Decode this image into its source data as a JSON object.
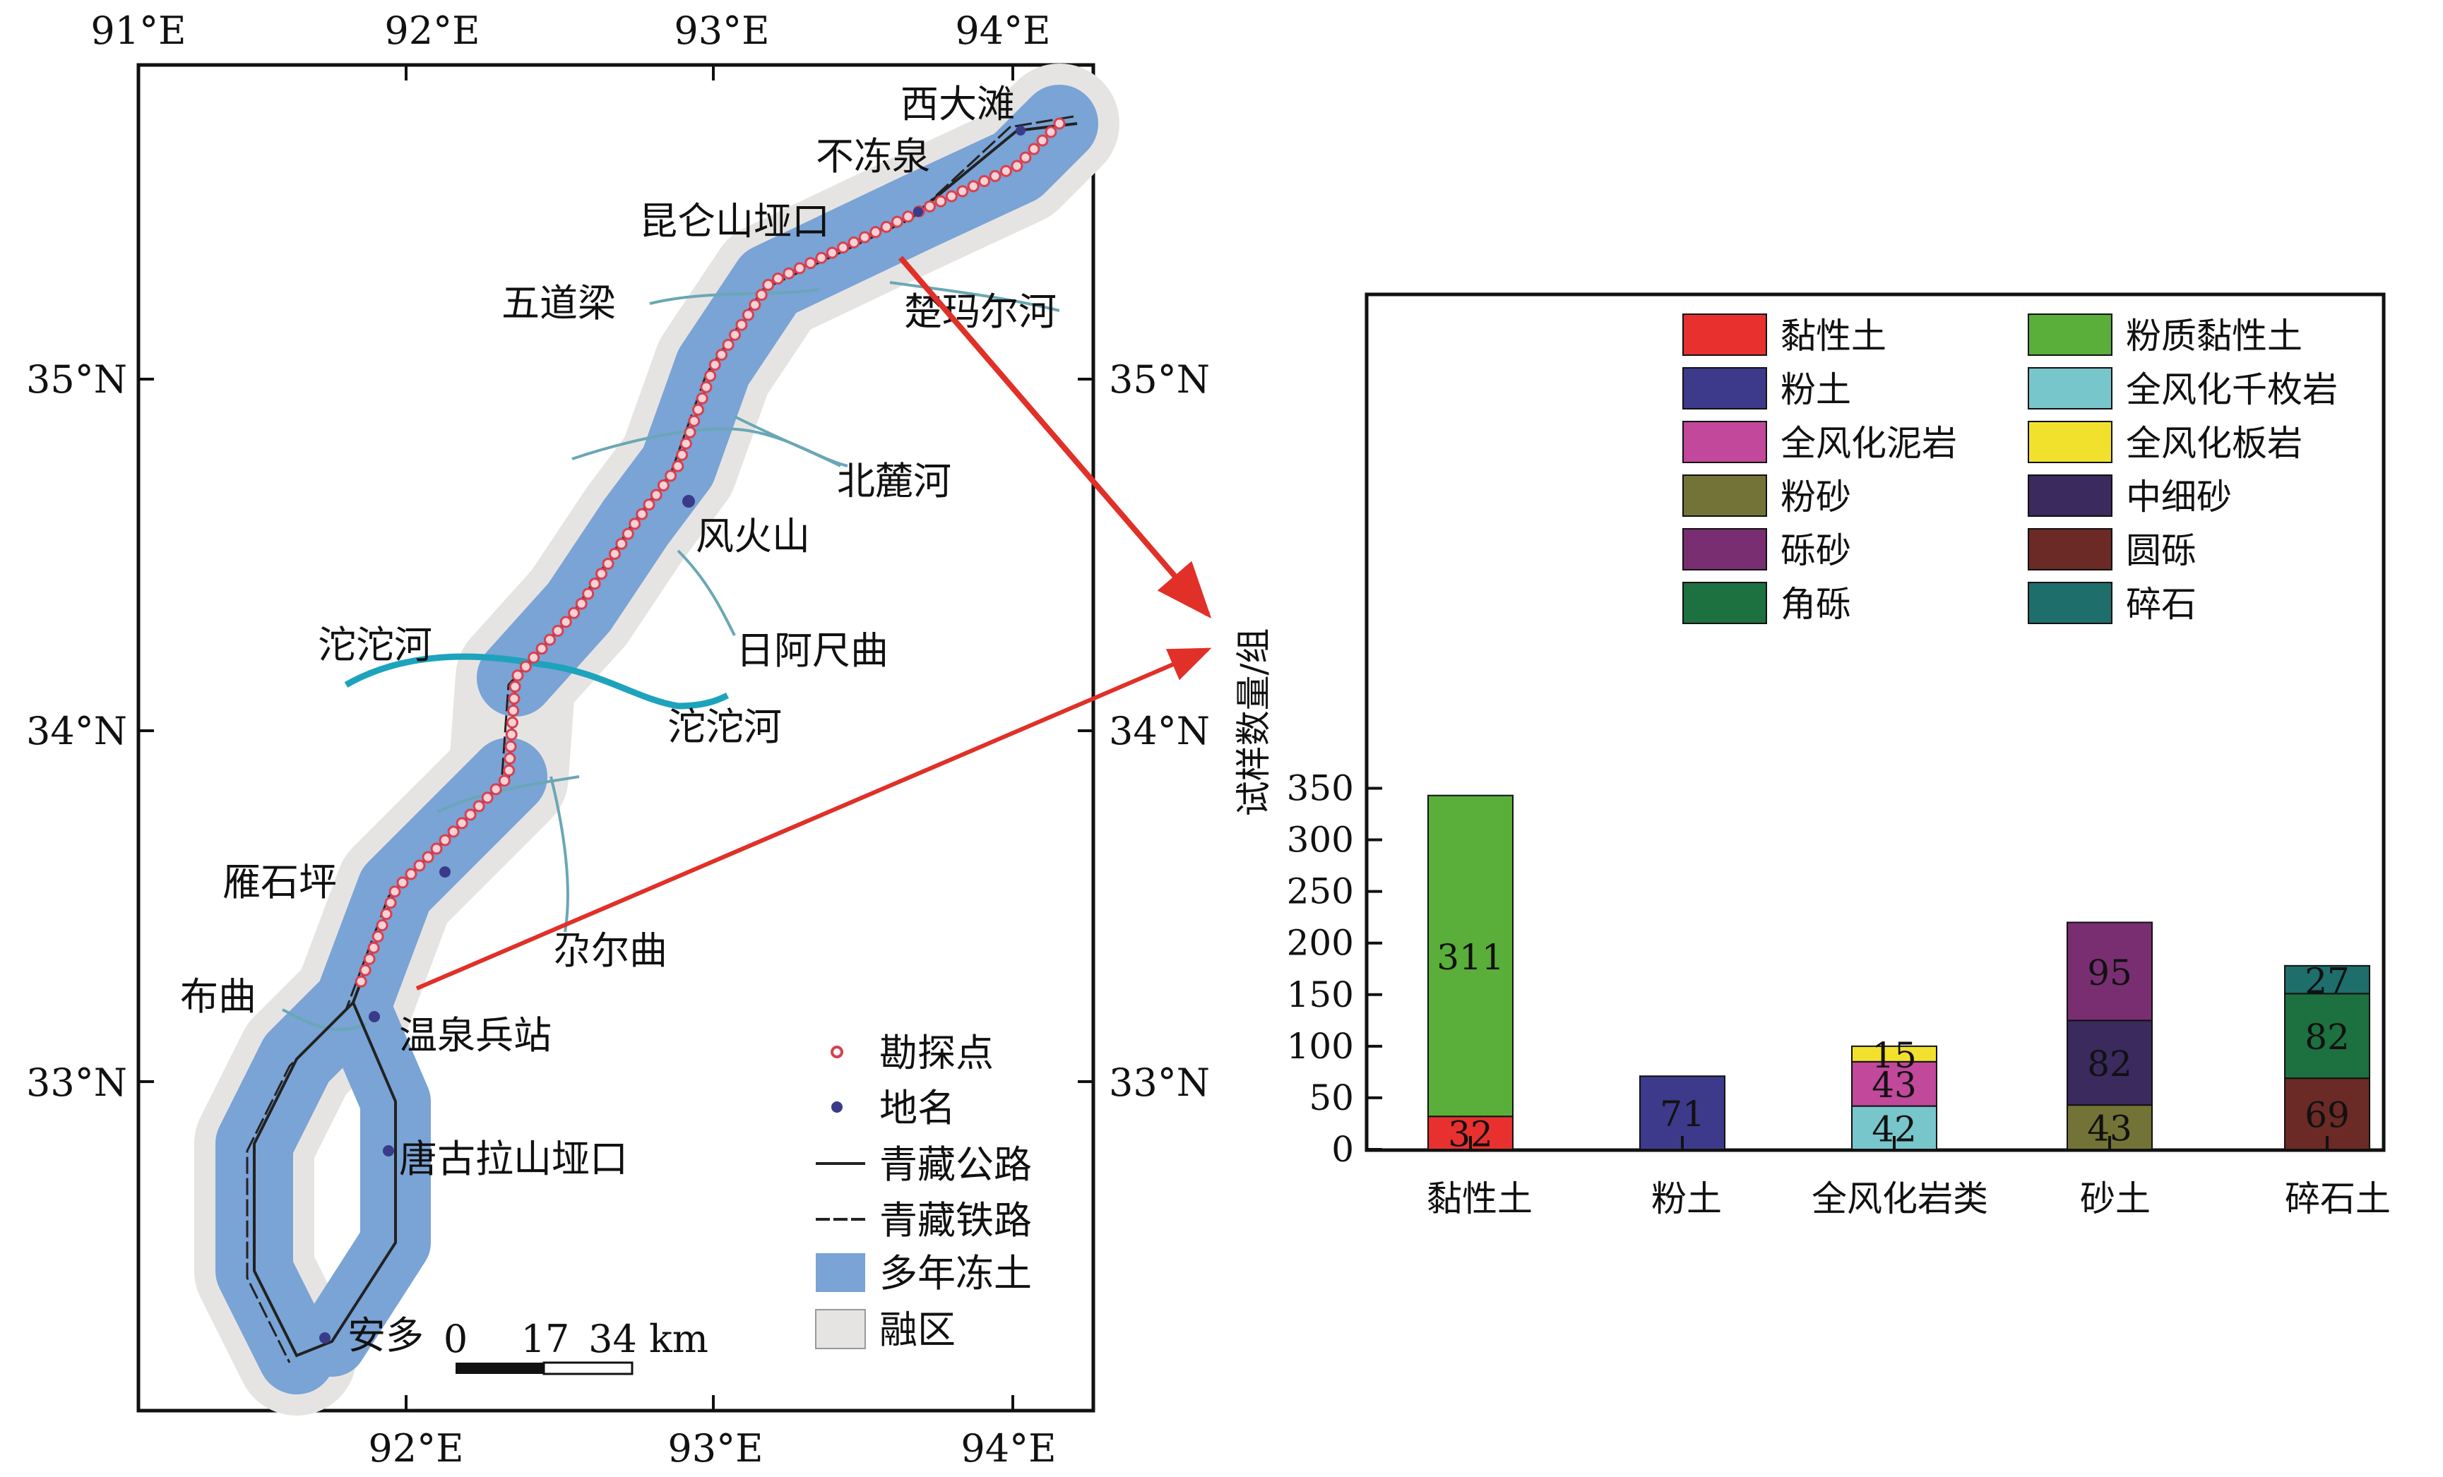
{
  "map": {
    "lon_labels": [
      "91°E",
      "92°E",
      "93°E",
      "94°E"
    ],
    "lat_labels": [
      "35°N",
      "34°N",
      "33°N"
    ],
    "places": [
      "西大滩",
      "不冻泉",
      "昆仑山垭口",
      "五道梁",
      "楚玛尔河",
      "北麓河",
      "风火山",
      "沱沱河",
      "日阿尺曲",
      "沱沱河",
      "雁石坪",
      "尕尔曲",
      "布曲",
      "温泉兵站",
      "唐古拉山垭口",
      "安多"
    ],
    "legend": [
      "勘探点",
      "地名",
      "青藏公路",
      "青藏铁路",
      "多年冻土",
      "融区"
    ],
    "scale_labels": [
      "0",
      "17",
      "34 km"
    ],
    "colors": {
      "permafrost": "#7aa3d6",
      "talik": "#e6e4e2",
      "point": "#d9404f",
      "river": "#6aa7b5",
      "river_main": "#1ea3bd",
      "road": "#222222"
    }
  },
  "chart_data": {
    "type": "bar",
    "stacked": true,
    "ylabel": "试样数量/组",
    "ylim": [
      0,
      370
    ],
    "yticks": [
      0,
      50,
      100,
      150,
      200,
      250,
      300,
      350
    ],
    "grid": false,
    "legend_position": "top-inside",
    "categories": [
      "黏性土",
      "粉土",
      "全风化岩类",
      "砂土",
      "碎石土"
    ],
    "series": [
      {
        "name": "黏性土",
        "color": "#e8312f",
        "values": [
          32,
          null,
          null,
          null,
          null
        ]
      },
      {
        "name": "粉质黏性土",
        "color": "#5aae3a",
        "values": [
          311,
          null,
          null,
          null,
          null
        ]
      },
      {
        "name": "粉土",
        "color": "#3d3a8c",
        "values": [
          null,
          71,
          null,
          null,
          null
        ]
      },
      {
        "name": "全风化千枚岩",
        "color": "#77c6cc",
        "values": [
          null,
          null,
          42,
          null,
          null
        ]
      },
      {
        "name": "全风化泥岩",
        "color": "#c1489b",
        "values": [
          null,
          null,
          43,
          null,
          null
        ]
      },
      {
        "name": "全风化板岩",
        "color": "#f2e12c",
        "values": [
          null,
          null,
          15,
          null,
          null
        ]
      },
      {
        "name": "粉砂",
        "color": "#737337",
        "values": [
          null,
          null,
          null,
          43,
          null
        ]
      },
      {
        "name": "中细砂",
        "color": "#3a2a5e",
        "values": [
          null,
          null,
          null,
          82,
          null
        ]
      },
      {
        "name": "砾砂",
        "color": "#7a2e72",
        "values": [
          null,
          null,
          null,
          95,
          null
        ]
      },
      {
        "name": "圆砾",
        "color": "#6b2a25",
        "values": [
          null,
          null,
          null,
          null,
          69
        ]
      },
      {
        "name": "角砾",
        "color": "#1d7040",
        "values": [
          null,
          null,
          null,
          null,
          82
        ]
      },
      {
        "name": "碎石",
        "color": "#1e6e6c",
        "values": [
          null,
          null,
          null,
          null,
          27
        ]
      }
    ],
    "legend_order": [
      "黏性土",
      "粉质黏性土",
      "粉土",
      "全风化千枚岩",
      "全风化泥岩",
      "全风化板岩",
      "粉砂",
      "中细砂",
      "砾砂",
      "圆砾",
      "角砾",
      "碎石"
    ],
    "arrow_color": "#e03028"
  }
}
